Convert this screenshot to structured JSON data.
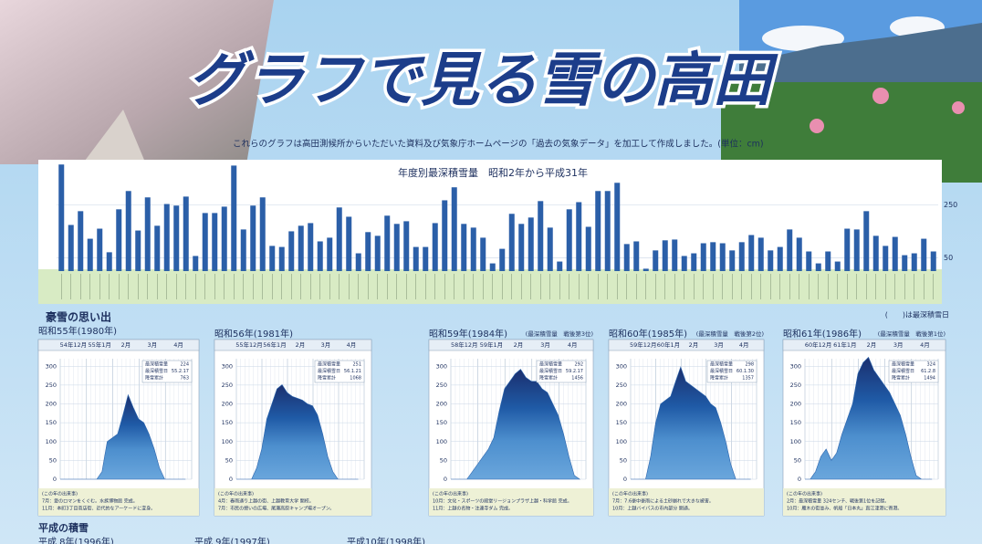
{
  "header": {
    "title": "グラフで見る雪の高田",
    "note": "これらのグラフは高田測候所からいただいた資料及び気象庁ホームページの「過去の気象データ」を加工して作成しました。(単位：cm)"
  },
  "section1": {
    "title": "豪雪の思い出",
    "legend": "(　　)は最深積雪日"
  },
  "section2": {
    "title": "平成の積雪",
    "items": [
      "平成 8年(1996年)",
      "平成 9年(1997年)",
      "平成10年(1998年)"
    ]
  },
  "chart_data": [
    {
      "type": "bar",
      "title": "年度別最深積雪量　昭和2年から平成31年",
      "color": "#2b5fa8",
      "values": [
        402,
        174,
        226,
        122,
        160,
        71,
        233,
        302,
        153,
        278,
        171,
        253,
        247,
        281,
        57,
        219,
        219,
        243,
        398,
        157,
        247,
        278,
        95,
        91,
        150,
        171,
        181,
        112,
        126,
        240,
        205,
        67,
        147,
        133,
        209,
        178,
        188,
        91,
        91,
        181,
        267,
        316,
        178,
        164,
        126,
        29,
        84,
        216,
        178,
        202,
        264,
        164,
        36,
        233,
        260,
        167,
        302,
        302,
        333,
        102,
        112,
        9,
        78,
        116,
        119,
        57,
        67,
        105,
        109,
        105,
        78,
        109,
        136,
        126,
        78,
        91,
        157,
        126,
        74,
        29,
        74,
        36,
        160,
        157,
        226,
        133,
        95,
        129,
        60,
        67,
        122,
        74
      ],
      "ylim": [
        0,
        420
      ],
      "yticks": [
        50,
        250
      ]
    },
    {
      "type": "area",
      "title": "昭和55年(1980年)",
      "months": [
        "54年12月",
        "55年1月",
        "2月",
        "3月",
        "4月"
      ],
      "color": "#2a64ad",
      "info": [
        {
          "label": "最深積雪量",
          "value": 224
        },
        {
          "label": "最深積雪日",
          "value": "55.2.17"
        },
        {
          "label": "降雪累計",
          "value": 763
        }
      ],
      "events": [
        "(この年の出来事)",
        "7月：愛のロマンをくぐむ。水族博物館 完成。",
        "11月：本町3丁目商店街、近代的なアーケードに変身。"
      ],
      "x": [
        0,
        6,
        12,
        18,
        24,
        30,
        36,
        42,
        48,
        54,
        60,
        66,
        72,
        78,
        84,
        90,
        96,
        102,
        108,
        114,
        120,
        126,
        132,
        138,
        144
      ],
      "values": [
        0,
        0,
        0,
        0,
        0,
        0,
        0,
        0,
        20,
        100,
        110,
        120,
        170,
        224,
        190,
        160,
        150,
        120,
        80,
        30,
        0,
        0,
        0,
        0,
        0
      ],
      "xlim": [
        0,
        151
      ],
      "ylim": [
        0,
        320
      ],
      "yticks": [
        0,
        50,
        100,
        150,
        200,
        250,
        300
      ]
    },
    {
      "type": "area",
      "title": "昭和56年(1981年)",
      "months": [
        "55年12月",
        "56年1月",
        "2月",
        "3月",
        "4月"
      ],
      "color": "#2a64ad",
      "info": [
        {
          "label": "最深積雪量",
          "value": 251
        },
        {
          "label": "最深積雪日",
          "value": "56.1.21"
        },
        {
          "label": "降雪累計",
          "value": 1068
        }
      ],
      "events": [
        "(この年の出来事)",
        "4月：春雨通り上越の街、上越教育大学 開校。",
        "7月：市民の憩いの広場、尾瀬高原キャンプ場オープン。"
      ],
      "x": [
        0,
        6,
        12,
        18,
        24,
        30,
        36,
        42,
        48,
        54,
        60,
        66,
        72,
        78,
        84,
        90,
        96,
        102,
        108,
        114,
        120,
        126,
        132,
        138,
        144
      ],
      "values": [
        0,
        0,
        0,
        0,
        30,
        80,
        160,
        200,
        240,
        251,
        230,
        220,
        215,
        210,
        200,
        195,
        170,
        120,
        60,
        20,
        0,
        0,
        0,
        0,
        0
      ],
      "xlim": [
        0,
        151
      ],
      "ylim": [
        0,
        320
      ],
      "yticks": [
        0,
        50,
        100,
        150,
        200,
        250,
        300
      ]
    },
    {
      "type": "area",
      "title": "昭和59年(1984年)",
      "rank": "(最深積雪量　戦後第3位)",
      "months": [
        "58年12月",
        "59年1月",
        "2月",
        "3月",
        "4月"
      ],
      "color": "#2a64ad",
      "info": [
        {
          "label": "最深積雪量",
          "value": 292
        },
        {
          "label": "最深積雪日",
          "value": "59.2.17"
        },
        {
          "label": "降雪累計",
          "value": 1456
        }
      ],
      "events": [
        "(この年の出来事)",
        "10月：文化・スポーツの殿堂リージョンプラザ上越・科学館 完成。",
        "11月：上越の名物・注連寺ダム 完成。"
      ],
      "x": [
        0,
        6,
        12,
        18,
        24,
        30,
        36,
        42,
        48,
        54,
        60,
        66,
        72,
        78,
        84,
        90,
        96,
        102,
        108,
        114,
        120,
        126,
        132,
        138,
        144
      ],
      "values": [
        0,
        0,
        0,
        0,
        20,
        40,
        60,
        80,
        110,
        180,
        240,
        260,
        280,
        292,
        270,
        260,
        260,
        240,
        230,
        200,
        170,
        120,
        60,
        10,
        0
      ],
      "xlim": [
        0,
        151
      ],
      "ylim": [
        0,
        320
      ],
      "yticks": [
        0,
        50,
        100,
        150,
        200,
        250,
        300
      ]
    },
    {
      "type": "area",
      "title": "昭和60年(1985年)",
      "rank": "(最深積雪量　戦後第2位)",
      "months": [
        "59年12月",
        "60年1月",
        "2月",
        "3月",
        "4月"
      ],
      "color": "#2a64ad",
      "info": [
        {
          "label": "最深積雪量",
          "value": 298
        },
        {
          "label": "最深積雪日",
          "value": "60.1.30"
        },
        {
          "label": "降雪累計",
          "value": 1357
        }
      ],
      "events": [
        "(この年の出来事)",
        "7月：7.6豪中豪雨による土砂崩れで大きな被害。",
        "10月：上越バイパスの市内部分 開通。"
      ],
      "x": [
        0,
        6,
        12,
        18,
        24,
        30,
        36,
        42,
        48,
        54,
        60,
        66,
        72,
        78,
        84,
        90,
        96,
        102,
        108,
        114,
        120,
        126,
        132,
        138,
        144
      ],
      "values": [
        0,
        0,
        0,
        0,
        60,
        150,
        200,
        210,
        220,
        260,
        298,
        260,
        250,
        240,
        230,
        220,
        200,
        190,
        150,
        100,
        40,
        0,
        0,
        0,
        0
      ],
      "xlim": [
        0,
        151
      ],
      "ylim": [
        0,
        320
      ],
      "yticks": [
        0,
        50,
        100,
        150,
        200,
        250,
        300
      ]
    },
    {
      "type": "area",
      "title": "昭和61年(1986年)",
      "rank": "(最深積雪量　戦後第1位)",
      "months": [
        "60年12月",
        "61年1月",
        "2月",
        "3月",
        "4月"
      ],
      "color": "#2a64ad",
      "info": [
        {
          "label": "最深積雪量",
          "value": 324
        },
        {
          "label": "最深積雪日",
          "value": "61.2.8"
        },
        {
          "label": "降雪累計",
          "value": 1494
        }
      ],
      "events": [
        "(この年の出来事)",
        "2月：最深積雪量 324センチ、戦後第1位を記録。",
        "10月：雁木の街並み、帆船「日本丸」直江津港に寄港。"
      ],
      "x": [
        0,
        6,
        12,
        18,
        24,
        30,
        36,
        42,
        48,
        54,
        60,
        66,
        72,
        78,
        84,
        90,
        96,
        102,
        108,
        114,
        120,
        126,
        132,
        138,
        144
      ],
      "values": [
        0,
        0,
        20,
        60,
        80,
        50,
        70,
        120,
        160,
        200,
        280,
        310,
        324,
        290,
        270,
        250,
        230,
        200,
        170,
        120,
        60,
        10,
        0,
        0,
        0
      ],
      "xlim": [
        0,
        151
      ],
      "ylim": [
        0,
        320
      ],
      "yticks": [
        0,
        50,
        100,
        150,
        200,
        250,
        300
      ]
    }
  ]
}
